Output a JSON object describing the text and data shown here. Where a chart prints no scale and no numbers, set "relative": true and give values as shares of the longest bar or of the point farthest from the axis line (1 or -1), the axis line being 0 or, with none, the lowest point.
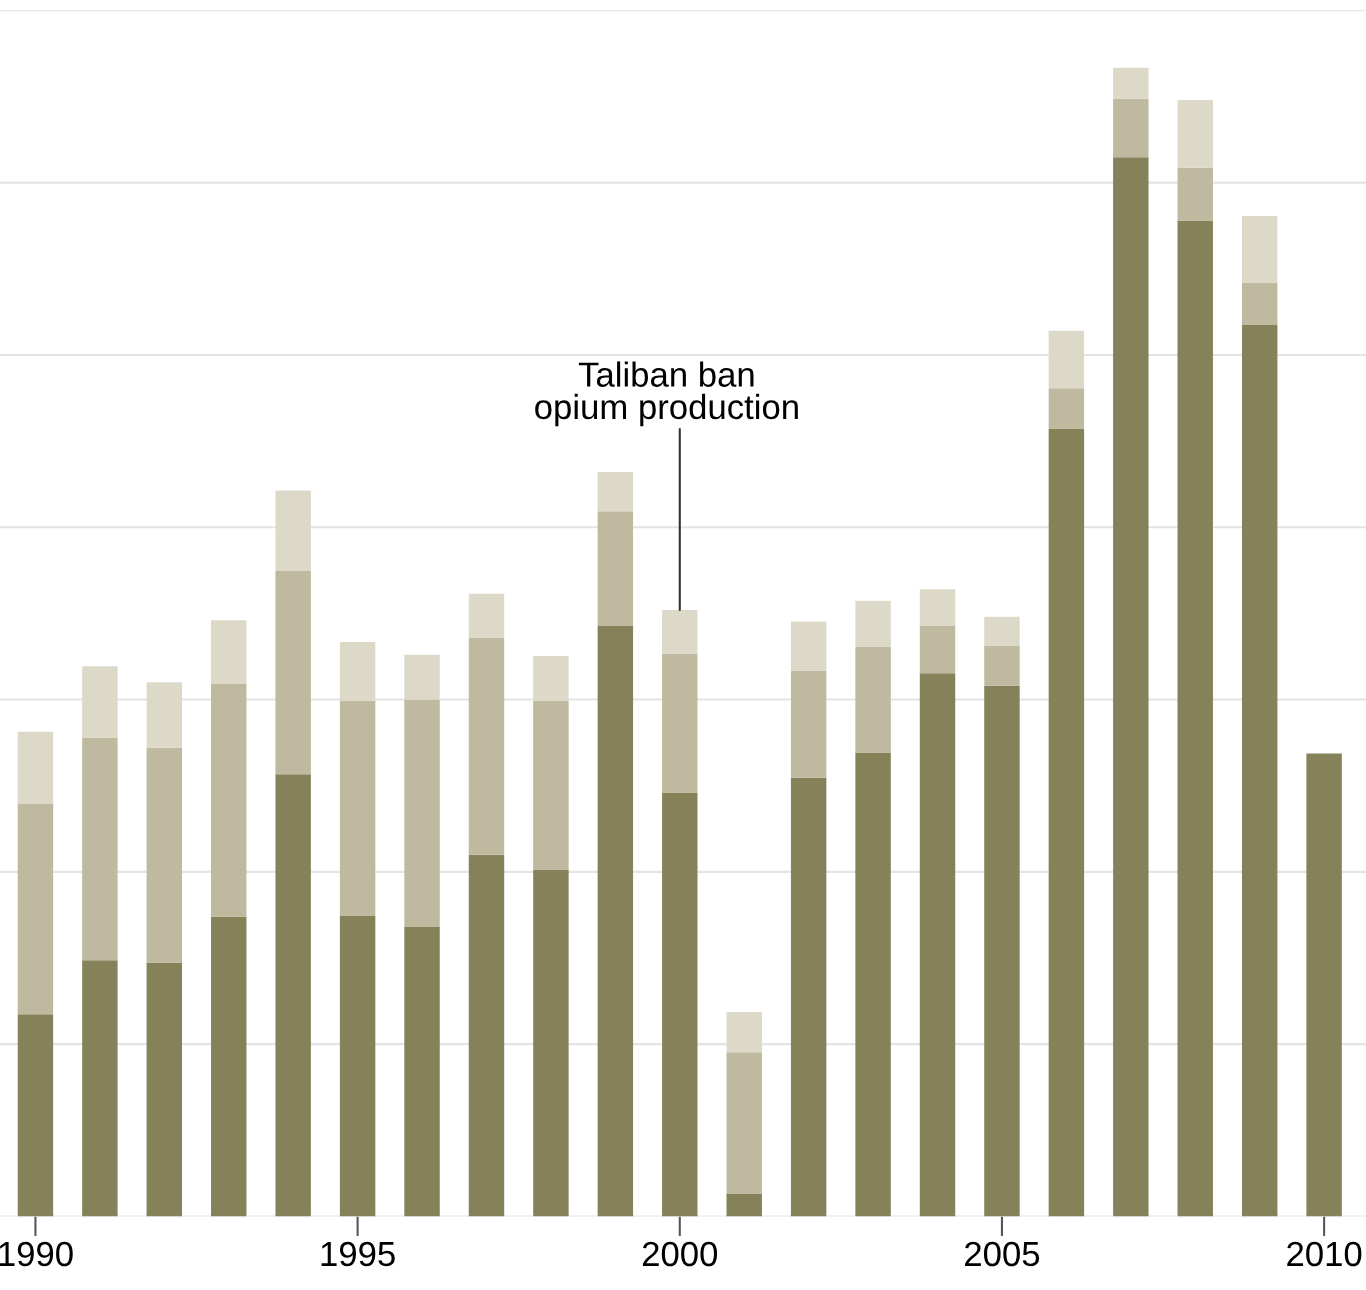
{
  "chart_data": {
    "type": "bar",
    "stacked": true,
    "relative": true,
    "grid": "y",
    "legend": false,
    "x": [
      1990,
      1991,
      1992,
      1993,
      1994,
      1995,
      1996,
      1997,
      1998,
      1999,
      2000,
      2001,
      2002,
      2003,
      2004,
      2005,
      2006,
      2007,
      2008,
      2009,
      2010
    ],
    "xlim": [
      1989.45,
      2010.65
    ],
    "xticks": [
      1990,
      1995,
      2000,
      2005,
      2010
    ],
    "series": [
      {
        "color": "#85825a",
        "values": [
          0.176,
          0.223,
          0.221,
          0.261,
          0.385,
          0.262,
          0.252,
          0.315,
          0.302,
          0.514,
          0.369,
          0.02,
          0.382,
          0.404,
          0.473,
          0.462,
          0.686,
          0.922,
          0.867,
          0.776,
          0.403
        ]
      },
      {
        "color": "#bfb9a0",
        "values": [
          0.183,
          0.194,
          0.187,
          0.203,
          0.177,
          0.187,
          0.198,
          0.189,
          0.147,
          0.1,
          0.121,
          0.123,
          0.093,
          0.092,
          0.041,
          0.035,
          0.035,
          0.051,
          0.046,
          0.037,
          null
        ]
      },
      {
        "color": "#ddd9c9",
        "values": [
          0.063,
          0.062,
          0.057,
          0.055,
          0.07,
          0.051,
          0.039,
          0.038,
          0.039,
          0.034,
          0.038,
          0.035,
          0.043,
          0.04,
          0.032,
          0.025,
          0.05,
          0.027,
          0.059,
          0.058,
          null
        ]
      }
    ],
    "annotations": [
      {
        "text": "Taliban ban\nopium production",
        "x": 2000,
        "y": 0.528
      }
    ]
  }
}
